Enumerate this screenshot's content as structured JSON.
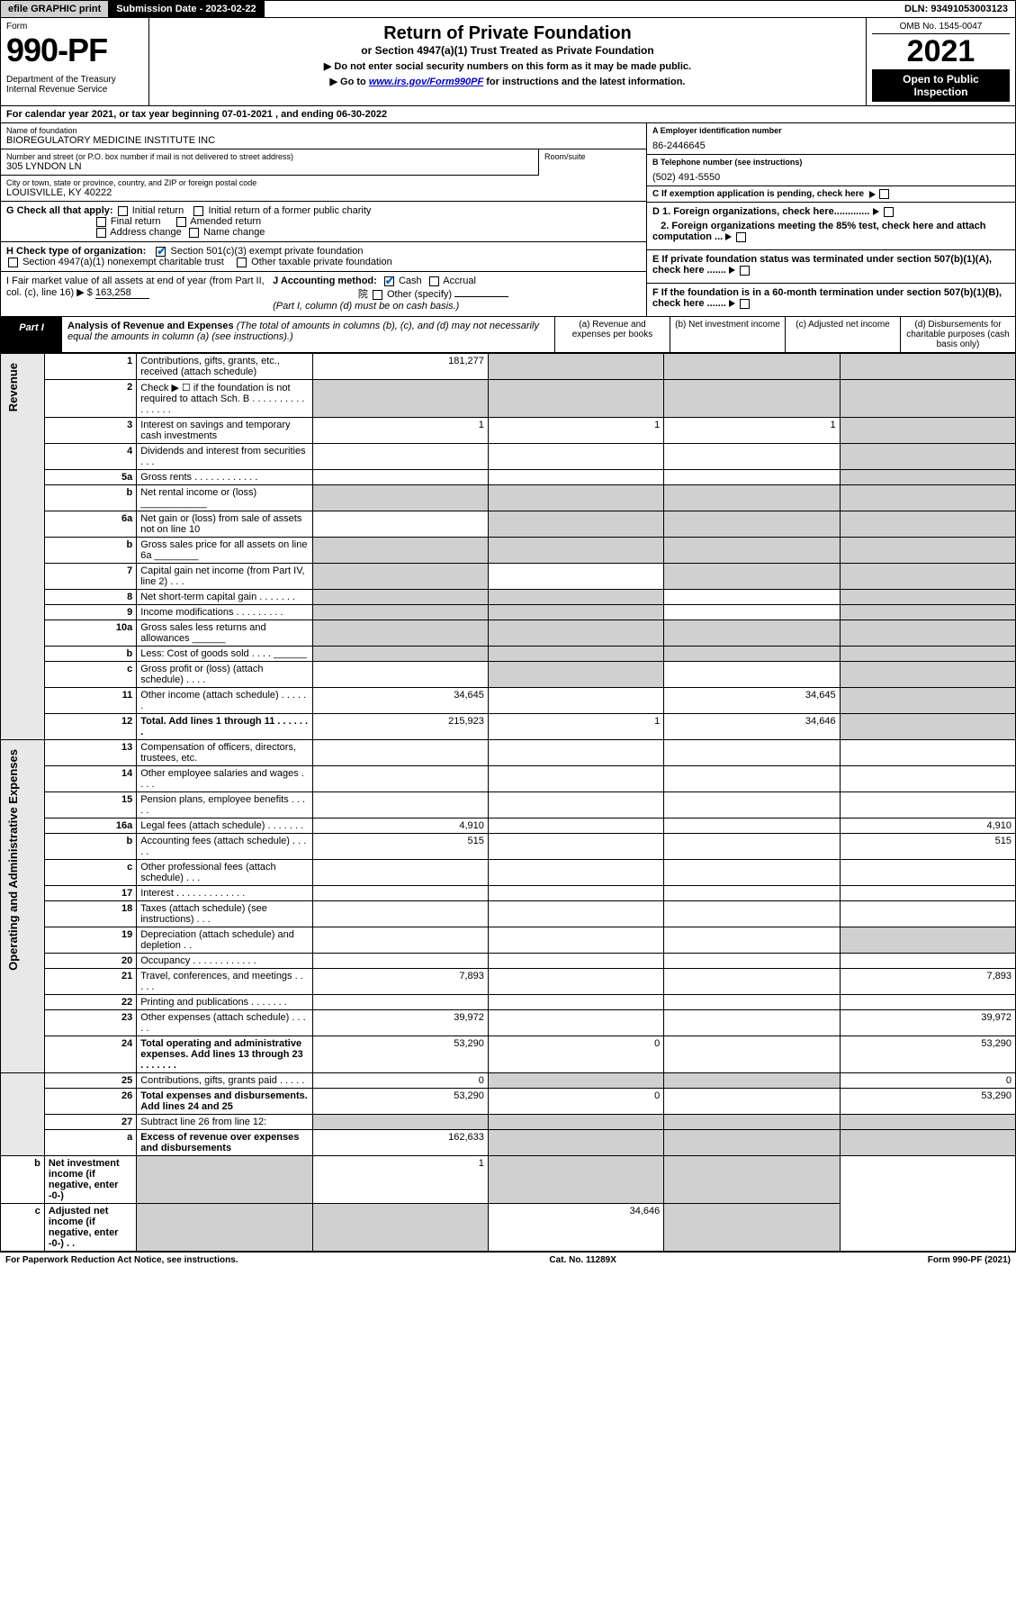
{
  "topbar": {
    "efile": "efile GRAPHIC print",
    "subdate": "Submission Date - 2023-02-22",
    "dln": "DLN: 93491053003123"
  },
  "header": {
    "formword": "Form",
    "formno": "990-PF",
    "dept": "Department of the Treasury",
    "irs": "Internal Revenue Service",
    "title": "Return of Private Foundation",
    "subtitle": "or Section 4947(a)(1) Trust Treated as Private Foundation",
    "instr1": "▶ Do not enter social security numbers on this form as it may be made public.",
    "instr2": "▶ Go to www.irs.gov/Form990PF for instructions and the latest information.",
    "omb": "OMB No. 1545-0047",
    "year": "2021",
    "open": "Open to Public Inspection"
  },
  "calrow": "For calendar year 2021, or tax year beginning 07-01-2021          , and ending 06-30-2022",
  "info": {
    "name_lbl": "Name of foundation",
    "name": "BIOREGULATORY MEDICINE INSTITUTE INC",
    "addr_lbl": "Number and street (or P.O. box number if mail is not delivered to street address)",
    "addr": "305 LYNDON LN",
    "room_lbl": "Room/suite",
    "room": "",
    "city_lbl": "City or town, state or province, country, and ZIP or foreign postal code",
    "city": "LOUISVILLE, KY  40222",
    "a_lbl": "A Employer identification number",
    "a_val": "86-2446645",
    "b_lbl": "B Telephone number (see instructions)",
    "b_val": "(502) 491-5550",
    "c_lbl": "C If exemption application is pending, check here"
  },
  "gcheck": {
    "lbl": "G Check all that apply:",
    "items": [
      "Initial return",
      "Initial return of a former public charity",
      "Final return",
      "Amended return",
      "Address change",
      "Name change"
    ]
  },
  "hcheck": {
    "lbl": "H Check type of organization:",
    "item1": "Section 501(c)(3) exempt private foundation",
    "item2": "Section 4947(a)(1) nonexempt charitable trust",
    "item3": "Other taxable private foundation"
  },
  "ij": {
    "i_lbl": "I Fair market value of all assets at end of year (from Part II, col. (c), line 16) ▶ $",
    "i_val": "163,258",
    "j_lbl": "J Accounting method:",
    "j_cash": "Cash",
    "j_accrual": "Accrual",
    "j_other": "Other (specify)",
    "j_note": "(Part I, column (d) must be on cash basis.)"
  },
  "def": {
    "d1": "D 1. Foreign organizations, check here.............",
    "d2": "2. Foreign organizations meeting the 85% test, check here and attach computation ...",
    "e": "E  If private foundation status was terminated under section 507(b)(1)(A), check here .......",
    "f": "F  If the foundation is in a 60-month termination under section 507(b)(1)(B), check here ......."
  },
  "part1": {
    "lbl": "Part I",
    "title": "Analysis of Revenue and Expenses",
    "note": "(The total of amounts in columns (b), (c), and (d) may not necessarily equal the amounts in column (a) (see instructions).)",
    "cols": {
      "a": "(a)  Revenue and expenses per books",
      "b": "(b)  Net investment income",
      "c": "(c)  Adjusted net income",
      "d": "(d)  Disbursements for charitable purposes (cash basis only)"
    }
  },
  "sections": {
    "revenue": "Revenue",
    "expenses": "Operating and Administrative Expenses"
  },
  "rows": [
    {
      "n": "1",
      "d": "Contributions, gifts, grants, etc., received (attach schedule)",
      "a": "181,277",
      "b": "",
      "c": "",
      "ds": "",
      "shade_b": true,
      "shade_c": true,
      "shade_d": true
    },
    {
      "n": "2",
      "d": "Check ▶ ☐ if the foundation is not required to attach Sch. B   .  .  .  .  .  .  .  .  .  .  .  .  .  .  .  .",
      "a": "",
      "b": "",
      "c": "",
      "ds": "",
      "shade_a": true,
      "shade_b": true,
      "shade_c": true,
      "shade_d": true
    },
    {
      "n": "3",
      "d": "Interest on savings and temporary cash investments",
      "a": "1",
      "b": "1",
      "c": "1",
      "ds": "",
      "shade_d": true
    },
    {
      "n": "4",
      "d": "Dividends and interest from securities   .  .  .",
      "a": "",
      "b": "",
      "c": "",
      "ds": "",
      "shade_d": true
    },
    {
      "n": "5a",
      "d": "Gross rents   .  .  .  .  .  .  .  .  .  .  .  .",
      "a": "",
      "b": "",
      "c": "",
      "ds": "",
      "shade_d": true
    },
    {
      "n": "b",
      "d": "Net rental income or (loss)  ____________",
      "a": "",
      "b": "",
      "c": "",
      "ds": "",
      "shade_a": true,
      "shade_b": true,
      "shade_c": true,
      "shade_d": true
    },
    {
      "n": "6a",
      "d": "Net gain or (loss) from sale of assets not on line 10",
      "a": "",
      "b": "",
      "c": "",
      "ds": "",
      "shade_b": true,
      "shade_c": true,
      "shade_d": true
    },
    {
      "n": "b",
      "d": "Gross sales price for all assets on line 6a ________",
      "a": "",
      "b": "",
      "c": "",
      "ds": "",
      "shade_a": true,
      "shade_b": true,
      "shade_c": true,
      "shade_d": true
    },
    {
      "n": "7",
      "d": "Capital gain net income (from Part IV, line 2)   .  .  .",
      "a": "",
      "b": "",
      "c": "",
      "ds": "",
      "shade_a": true,
      "shade_c": true,
      "shade_d": true
    },
    {
      "n": "8",
      "d": "Net short-term capital gain   .  .  .  .  .  .  .",
      "a": "",
      "b": "",
      "c": "",
      "ds": "",
      "shade_a": true,
      "shade_b": true,
      "shade_d": true
    },
    {
      "n": "9",
      "d": "Income modifications   .  .  .  .  .  .  .  .  .",
      "a": "",
      "b": "",
      "c": "",
      "ds": "",
      "shade_a": true,
      "shade_b": true,
      "shade_d": true
    },
    {
      "n": "10a",
      "d": "Gross sales less returns and allowances  ______",
      "a": "",
      "b": "",
      "c": "",
      "ds": "",
      "shade_a": true,
      "shade_b": true,
      "shade_c": true,
      "shade_d": true
    },
    {
      "n": "b",
      "d": "Less: Cost of goods sold   .  .  .  .  ______",
      "a": "",
      "b": "",
      "c": "",
      "ds": "",
      "shade_a": true,
      "shade_b": true,
      "shade_c": true,
      "shade_d": true
    },
    {
      "n": "c",
      "d": "Gross profit or (loss) (attach schedule)   .  .  .  .",
      "a": "",
      "b": "",
      "c": "",
      "ds": "",
      "shade_b": true,
      "shade_d": true
    },
    {
      "n": "11",
      "d": "Other income (attach schedule)   .  .  .  .  .  .",
      "a": "34,645",
      "b": "",
      "c": "34,645",
      "ds": "",
      "shade_d": true
    },
    {
      "n": "12",
      "d": "Total. Add lines 1 through 11   .  .  .  .  .  .  .",
      "a": "215,923",
      "b": "1",
      "c": "34,646",
      "ds": "",
      "bold": true,
      "shade_d": true
    },
    {
      "n": "13",
      "d": "Compensation of officers, directors, trustees, etc.",
      "a": "",
      "b": "",
      "c": "",
      "ds": ""
    },
    {
      "n": "14",
      "d": "Other employee salaries and wages   .  .  .  .",
      "a": "",
      "b": "",
      "c": "",
      "ds": ""
    },
    {
      "n": "15",
      "d": "Pension plans, employee benefits   .  .  .  .  .",
      "a": "",
      "b": "",
      "c": "",
      "ds": ""
    },
    {
      "n": "16a",
      "d": "Legal fees (attach schedule)   .  .  .  .  .  .  .",
      "a": "4,910",
      "b": "",
      "c": "",
      "ds": "4,910"
    },
    {
      "n": "b",
      "d": "Accounting fees (attach schedule)   .  .  .  .  .",
      "a": "515",
      "b": "",
      "c": "",
      "ds": "515"
    },
    {
      "n": "c",
      "d": "Other professional fees (attach schedule)   .  .  .",
      "a": "",
      "b": "",
      "c": "",
      "ds": ""
    },
    {
      "n": "17",
      "d": "Interest   .  .  .  .  .  .  .  .  .  .  .  .  .",
      "a": "",
      "b": "",
      "c": "",
      "ds": ""
    },
    {
      "n": "18",
      "d": "Taxes (attach schedule) (see instructions)   .  .  .",
      "a": "",
      "b": "",
      "c": "",
      "ds": ""
    },
    {
      "n": "19",
      "d": "Depreciation (attach schedule) and depletion   .  .",
      "a": "",
      "b": "",
      "c": "",
      "ds": "",
      "shade_d": true
    },
    {
      "n": "20",
      "d": "Occupancy   .  .  .  .  .  .  .  .  .  .  .  .",
      "a": "",
      "b": "",
      "c": "",
      "ds": ""
    },
    {
      "n": "21",
      "d": "Travel, conferences, and meetings   .  .  .  .  .",
      "a": "7,893",
      "b": "",
      "c": "",
      "ds": "7,893"
    },
    {
      "n": "22",
      "d": "Printing and publications   .  .  .  .  .  .  .",
      "a": "",
      "b": "",
      "c": "",
      "ds": ""
    },
    {
      "n": "23",
      "d": "Other expenses (attach schedule)   .  .  .  .  .",
      "a": "39,972",
      "b": "",
      "c": "",
      "ds": "39,972"
    },
    {
      "n": "24",
      "d": "Total operating and administrative expenses. Add lines 13 through 23   .  .  .  .  .  .  .",
      "a": "53,290",
      "b": "0",
      "c": "",
      "ds": "53,290",
      "bold": true
    },
    {
      "n": "25",
      "d": "Contributions, gifts, grants paid   .  .  .  .  .",
      "a": "0",
      "b": "",
      "c": "",
      "ds": "0",
      "shade_b": true,
      "shade_c": true
    },
    {
      "n": "26",
      "d": "Total expenses and disbursements. Add lines 24 and 25",
      "a": "53,290",
      "b": "0",
      "c": "",
      "ds": "53,290",
      "bold": true
    },
    {
      "n": "27",
      "d": "Subtract line 26 from line 12:",
      "a": "",
      "b": "",
      "c": "",
      "ds": "",
      "shade_a": true,
      "shade_b": true,
      "shade_c": true,
      "shade_d": true
    },
    {
      "n": "a",
      "d": "Excess of revenue over expenses and disbursements",
      "a": "162,633",
      "b": "",
      "c": "",
      "ds": "",
      "bold": true,
      "shade_b": true,
      "shade_c": true,
      "shade_d": true
    },
    {
      "n": "b",
      "d": "Net investment income (if negative, enter -0-)",
      "a": "",
      "b": "1",
      "c": "",
      "ds": "",
      "bold": true,
      "shade_a": true,
      "shade_c": true,
      "shade_d": true
    },
    {
      "n": "c",
      "d": "Adjusted net income (if negative, enter -0-)   .  .",
      "a": "",
      "b": "",
      "c": "34,646",
      "ds": "",
      "bold": true,
      "shade_a": true,
      "shade_b": true,
      "shade_d": true
    }
  ],
  "footer": {
    "left": "For Paperwork Reduction Act Notice, see instructions.",
    "mid": "Cat. No. 11289X",
    "right": "Form 990-PF (2021)"
  },
  "colors": {
    "black": "#000000",
    "shade": "#d0d0d0",
    "vlabel_bg": "#e8e8e8",
    "link": "#0000cc",
    "check": "#0066cc"
  }
}
